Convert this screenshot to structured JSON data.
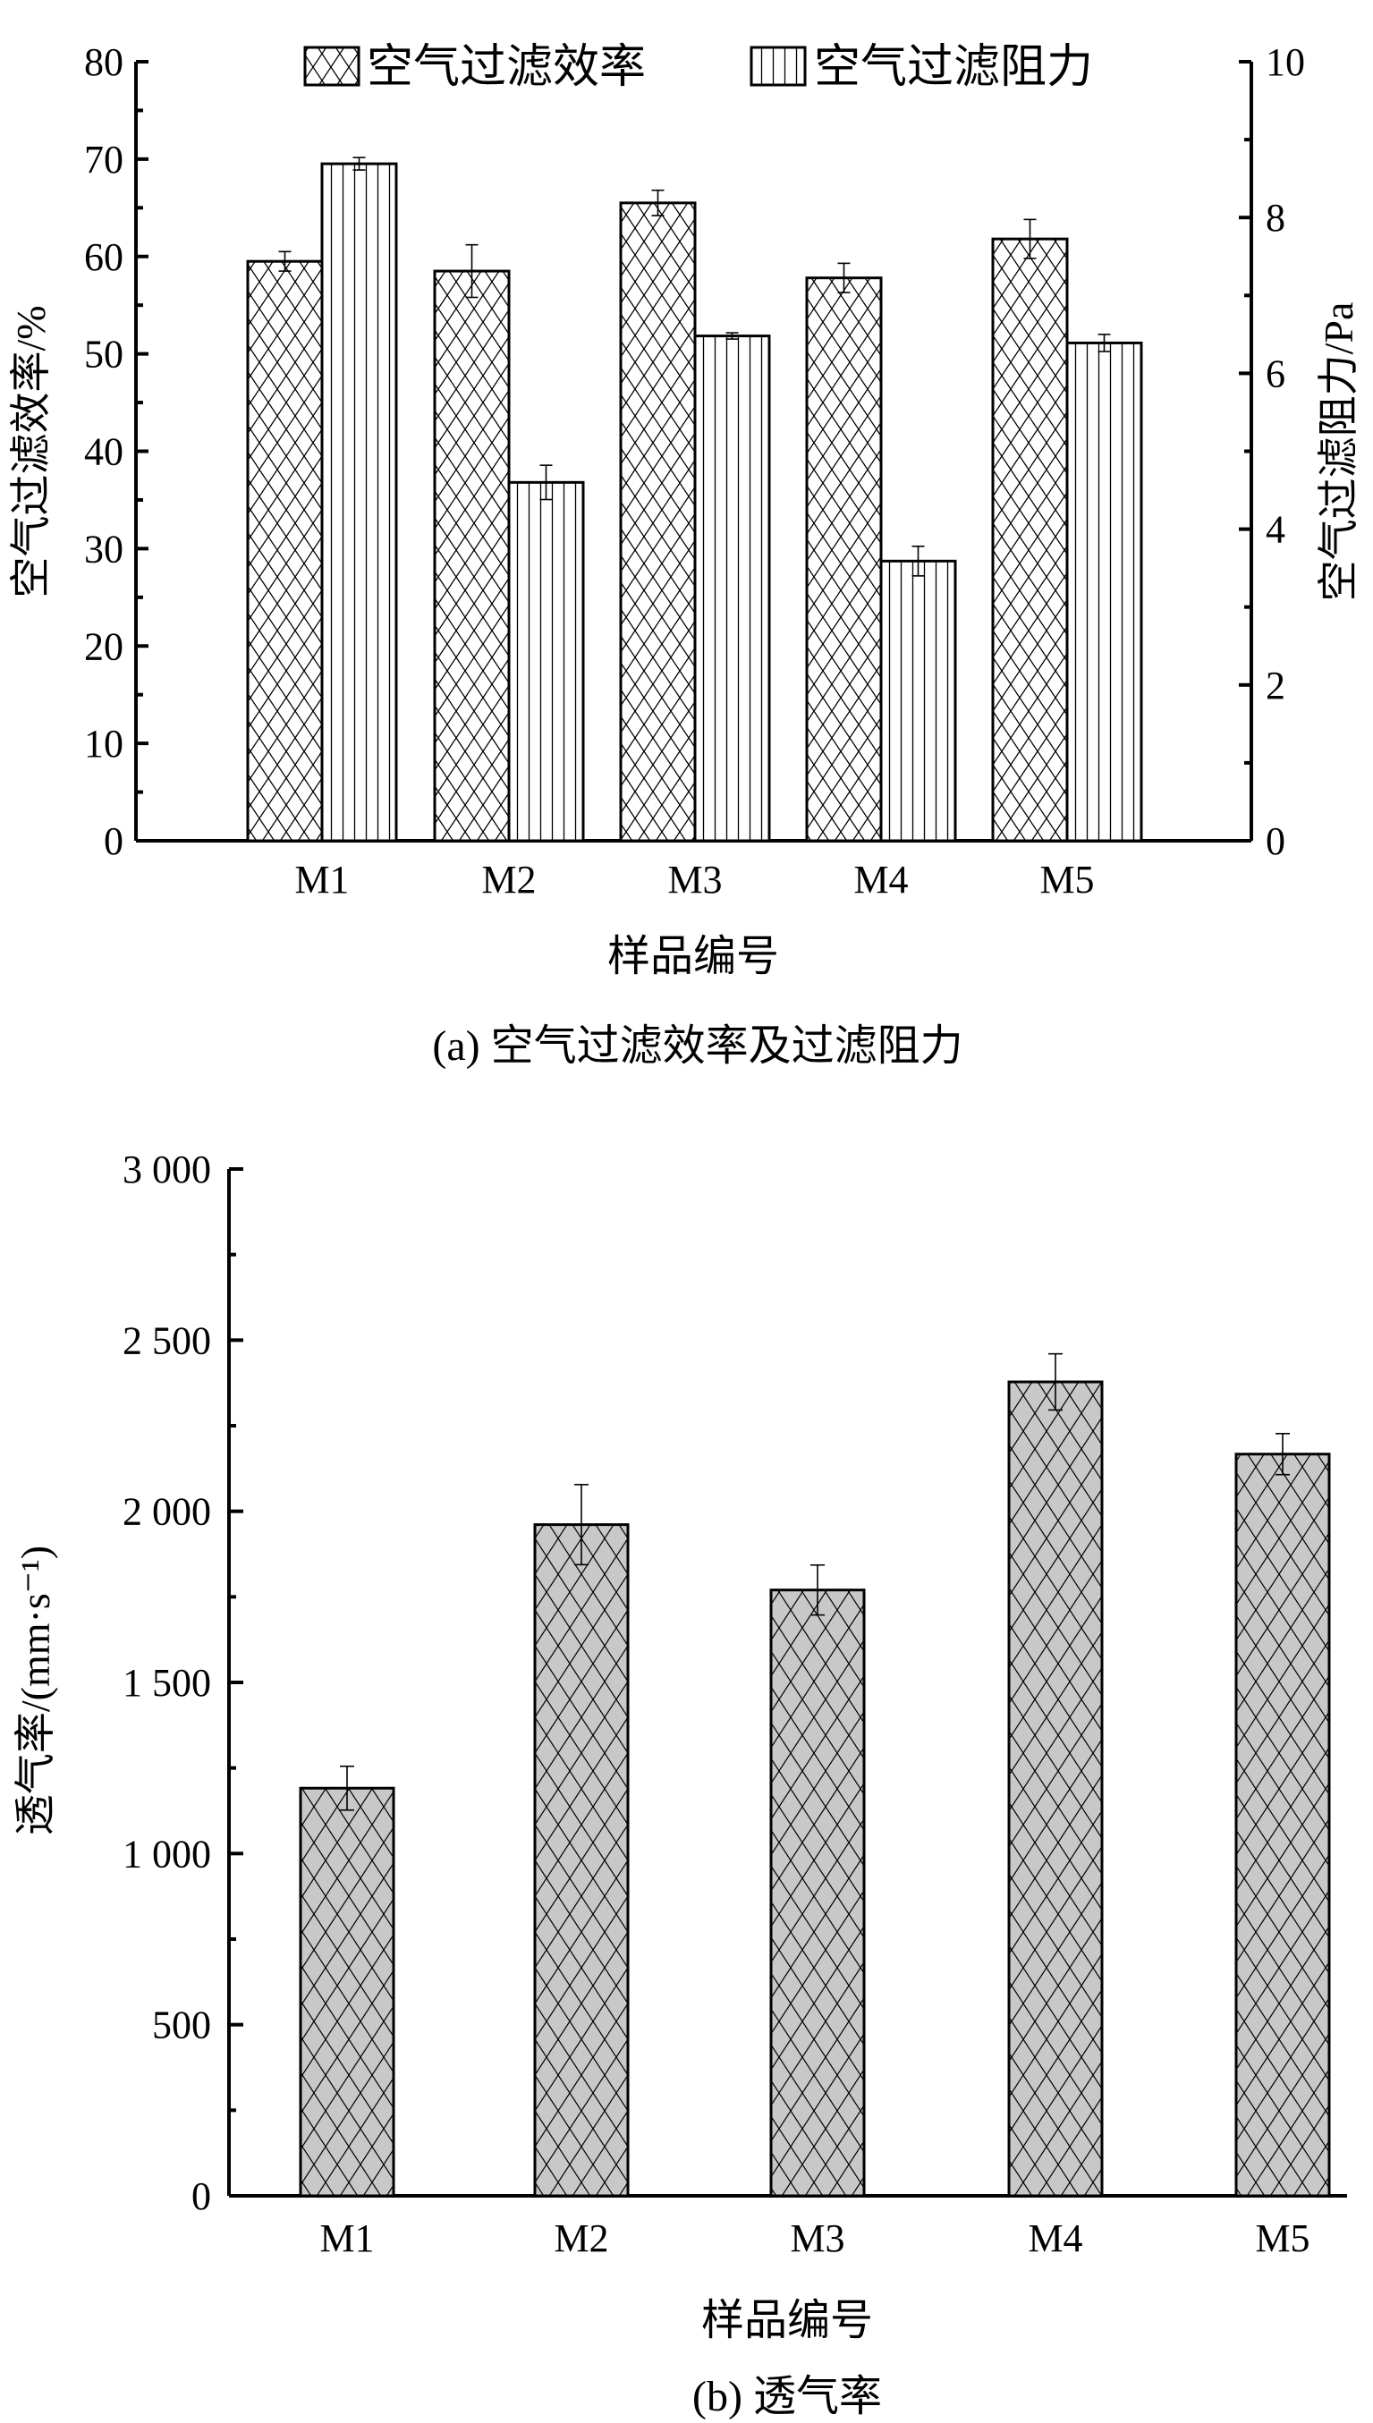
{
  "chart_data": [
    {
      "type": "bar",
      "title": "",
      "caption": "(a) 空气过滤效率及过滤阻力",
      "xlabel": "样品编号",
      "ylabel": "空气过滤效率/%",
      "y2label": "空气过滤阻力/Pa",
      "categories": [
        "M1",
        "M2",
        "M3",
        "M4",
        "M5"
      ],
      "ylim": [
        0,
        80
      ],
      "y2lim": [
        0,
        10
      ],
      "yticks": [
        0,
        10,
        20,
        30,
        40,
        50,
        60,
        70,
        80
      ],
      "y2ticks": [
        0,
        2,
        4,
        6,
        8,
        10
      ],
      "legend_position": "top",
      "series": [
        {
          "name": "空气过滤效率",
          "axis": "left",
          "pattern": "crosshatch",
          "values": [
            59.5,
            58.5,
            65.5,
            57.8,
            61.8
          ],
          "errors": [
            1.0,
            2.7,
            1.3,
            1.5,
            2.0
          ]
        },
        {
          "name": "空气过滤阻力",
          "axis": "right",
          "pattern": "vertical",
          "values": [
            8.69,
            4.6,
            6.48,
            3.59,
            6.39
          ],
          "errors": [
            0.08,
            0.22,
            0.04,
            0.19,
            0.11
          ]
        }
      ]
    },
    {
      "type": "bar",
      "title": "",
      "caption": "(b) 透气率",
      "xlabel": "样品编号",
      "ylabel": "透气率/(mm·s⁻¹)",
      "categories": [
        "M1",
        "M2",
        "M3",
        "M4",
        "M5"
      ],
      "ylim": [
        0,
        3000
      ],
      "yticks": [
        0,
        500,
        1000,
        1500,
        2000,
        2500,
        3000
      ],
      "ytick_labels": [
        "0",
        "500",
        "1 000",
        "1 500",
        "2 000",
        "2 500",
        "3 000"
      ],
      "series": [
        {
          "name": "透气率",
          "pattern": "crosshatch-gray",
          "values": [
            1191,
            1961,
            1770,
            2378,
            2167
          ],
          "errors": [
            64,
            117,
            73,
            82,
            60
          ]
        }
      ],
      "colors": {
        "fill": "#c8c8c8",
        "stroke": "#000000"
      }
    }
  ]
}
